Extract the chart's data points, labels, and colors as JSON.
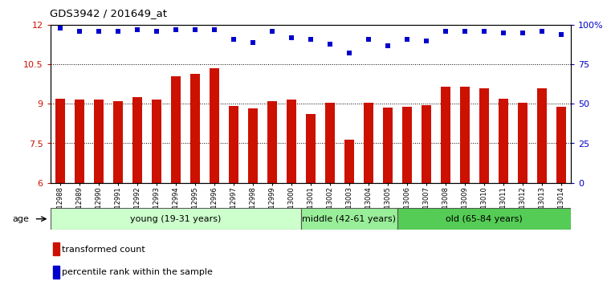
{
  "title": "GDS3942 / 201649_at",
  "samples": [
    "GSM812988",
    "GSM812989",
    "GSM812990",
    "GSM812991",
    "GSM812992",
    "GSM812993",
    "GSM812994",
    "GSM812995",
    "GSM812996",
    "GSM812997",
    "GSM812998",
    "GSM812999",
    "GSM813000",
    "GSM813001",
    "GSM813002",
    "GSM813003",
    "GSM813004",
    "GSM813005",
    "GSM813006",
    "GSM813007",
    "GSM813008",
    "GSM813009",
    "GSM813010",
    "GSM813011",
    "GSM813012",
    "GSM813013",
    "GSM813014"
  ],
  "bar_values": [
    9.2,
    9.15,
    9.15,
    9.1,
    9.25,
    9.15,
    10.05,
    10.15,
    10.35,
    8.92,
    8.82,
    9.1,
    9.15,
    8.6,
    9.05,
    7.65,
    9.05,
    8.85,
    8.9,
    8.95,
    9.65,
    9.65,
    9.6,
    9.2,
    9.05,
    9.6,
    8.9
  ],
  "dot_values": [
    98,
    96,
    96,
    96,
    97,
    96,
    97,
    97,
    97,
    91,
    89,
    96,
    92,
    91,
    88,
    82,
    91,
    87,
    91,
    90,
    96,
    96,
    96,
    95,
    95,
    96,
    94
  ],
  "bar_color": "#cc1100",
  "dot_color": "#0000cc",
  "ylim_left": [
    6,
    12
  ],
  "ylim_right": [
    0,
    100
  ],
  "yticks_left": [
    6,
    7.5,
    9,
    10.5,
    12
  ],
  "yticks_right": [
    0,
    25,
    50,
    75,
    100
  ],
  "ytick_labels_right": [
    "0",
    "25",
    "50",
    "75",
    "100%"
  ],
  "groups": [
    {
      "label": "young (19-31 years)",
      "start": 0,
      "end": 13,
      "color": "#ccffcc"
    },
    {
      "label": "middle (42-61 years)",
      "start": 13,
      "end": 18,
      "color": "#99ee99"
    },
    {
      "label": "old (65-84 years)",
      "start": 18,
      "end": 27,
      "color": "#55cc55"
    }
  ],
  "age_label": "age",
  "legend_bar_label": "transformed count",
  "legend_dot_label": "percentile rank within the sample",
  "bar_width": 0.5
}
